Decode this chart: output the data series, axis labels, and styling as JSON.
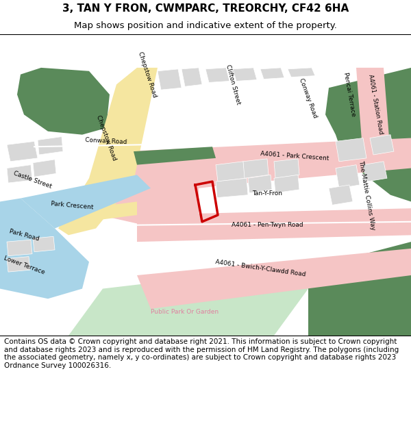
{
  "title_line1": "3, TAN Y FRON, CWMPARC, TREORCHY, CF42 6HA",
  "title_line2": "Map shows position and indicative extent of the property.",
  "footer": "Contains OS data © Crown copyright and database right 2021. This information is subject to Crown copyright and database rights 2023 and is reproduced with the permission of HM Land Registry. The polygons (including the associated geometry, namely x, y co-ordinates) are subject to Crown copyright and database rights 2023 Ordnance Survey 100026316.",
  "bg_color": "#f8f8f8",
  "map_bg": "#ffffff",
  "road_pink": "#f5c5c5",
  "road_yellow": "#f5e6a0",
  "road_white": "#ffffff",
  "water_blue": "#a8d4e8",
  "green1": "#5a8a5a",
  "green2": "#c8e6c8",
  "building_gray": "#d8d8d8",
  "plot_red": "#cc0000",
  "text_color": "#333333",
  "title_fontsize": 11,
  "footer_fontsize": 7.5
}
